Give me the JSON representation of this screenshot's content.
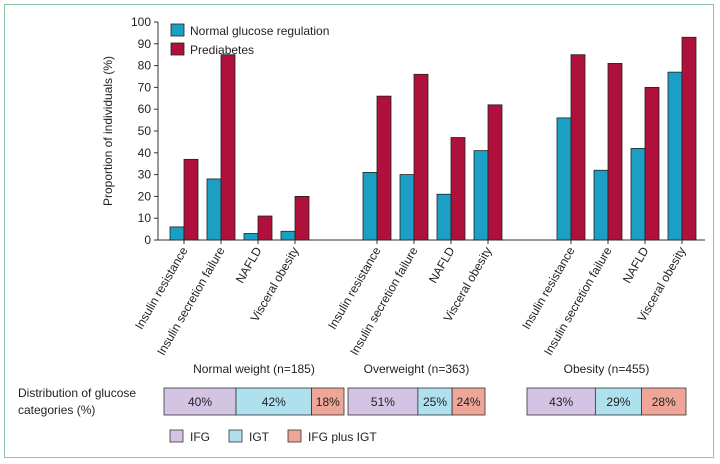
{
  "chart_data": {
    "type": "bar",
    "title": "",
    "ylabel": "Proportion of individuals (%)",
    "ylim": [
      0,
      100
    ],
    "yticks": [
      0,
      10,
      20,
      30,
      40,
      50,
      60,
      70,
      80,
      90,
      100
    ],
    "categories": [
      "Insulin resistance",
      "Insulin secretion failure",
      "NAFLD",
      "Visceral obesity"
    ],
    "groups": [
      {
        "name": "Normal weight (n=185)",
        "normal": [
          6,
          28,
          3,
          4
        ],
        "prediabetes": [
          37,
          85,
          11,
          20
        ]
      },
      {
        "name": "Overweight (n=363)",
        "normal": [
          31,
          30,
          21,
          41
        ],
        "prediabetes": [
          66,
          76,
          47,
          62
        ]
      },
      {
        "name": "Obesity (n=455)",
        "normal": [
          56,
          32,
          42,
          77
        ],
        "prediabetes": [
          85,
          81,
          70,
          93
        ]
      }
    ],
    "series": [
      {
        "name": "Normal glucose regulation",
        "color": "#1b9fc4"
      },
      {
        "name": "Prediabetes",
        "color": "#b0103c"
      }
    ],
    "legend_position": "top-left",
    "distribution": {
      "label": [
        "Distribution of glucose",
        "categories (%)"
      ],
      "categories": [
        {
          "name": "IFG",
          "color": "#d4c4e3"
        },
        {
          "name": "IGT",
          "color": "#aee0ee"
        },
        {
          "name": "IFG plus IGT",
          "color": "#eea698"
        }
      ],
      "groups": [
        {
          "name": "Normal weight (n=185)",
          "values": [
            40,
            42,
            18
          ],
          "labels": [
            "40%",
            "42%",
            "18%"
          ]
        },
        {
          "name": "Overweight (n=363)",
          "values": [
            51,
            25,
            24
          ],
          "labels": [
            "51%",
            "25%",
            "24%"
          ]
        },
        {
          "name": "Obesity (n=455)",
          "values": [
            43,
            29,
            28
          ],
          "labels": [
            "43%",
            "29%",
            "28%"
          ]
        }
      ]
    }
  }
}
